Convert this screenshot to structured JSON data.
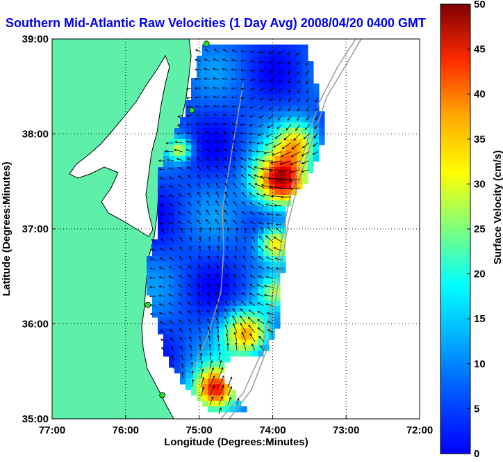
{
  "chart_data": {
    "type": "heatmap",
    "title": "Southern Mid-Atlantic Raw Velocities (1 Day Avg) 2008/04/20 0400 GMT",
    "xlabel": "Longitude (Degrees:Minutes)",
    "ylabel": "Latitude (Degrees:Minutes)",
    "x_ticks": [
      "77:00",
      "76:00",
      "75:00",
      "74:00",
      "73:00",
      "72:00"
    ],
    "y_ticks": [
      "39:00",
      "38:00",
      "37:00",
      "36:00",
      "35:00"
    ],
    "xlim": [
      -77,
      -72
    ],
    "ylim": [
      35,
      39
    ],
    "grid": true,
    "colorbar": {
      "label": "Surface Velocity (cm/s)",
      "range": [
        0,
        50
      ],
      "ticks": [
        "0",
        "5",
        "10",
        "15",
        "20",
        "25",
        "30",
        "35",
        "40",
        "45",
        "50"
      ],
      "colormap": "jet"
    },
    "land_color": "#5ef0a8",
    "vector_color": "#000000",
    "coastline_color": "#000000",
    "bathymetry_color": "#9a9a9a",
    "radar_sites": [
      {
        "lon": -74.9,
        "lat": 38.95
      },
      {
        "lon": -75.1,
        "lat": 38.25
      },
      {
        "lon": -75.7,
        "lat": 36.2
      },
      {
        "lon": -75.5,
        "lat": 35.25
      }
    ]
  }
}
